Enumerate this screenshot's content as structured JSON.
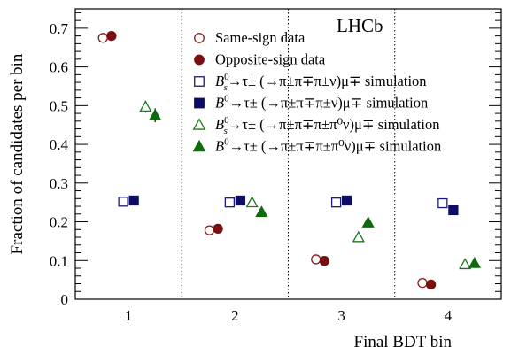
{
  "chart_data": {
    "type": "scatter",
    "title": "",
    "xlabel": "Final BDT bin",
    "ylabel": "Fraction of candidates per bin",
    "watermark": "LHCb",
    "xlim": [
      0.5,
      4.5
    ],
    "ylim": [
      0,
      0.75
    ],
    "categories": [
      "1",
      "2",
      "3",
      "4"
    ],
    "yticks": [
      "0",
      "0.1",
      "0.2",
      "0.3",
      "0.4",
      "0.5",
      "0.6",
      "0.7"
    ],
    "bin_dividers": [
      1.5,
      2.5,
      3.5
    ],
    "legend_position": "top-right",
    "series": [
      {
        "key": "ss",
        "marker": "circle-open",
        "color": "#8b1a1a",
        "legend": {
          "text": "Same-sign data"
        },
        "offset": -0.24,
        "values": [
          0.675,
          0.178,
          0.103,
          0.042
        ],
        "errors": [
          0,
          0,
          0,
          0
        ]
      },
      {
        "key": "os",
        "marker": "circle-filled",
        "color": "#7a0f0f",
        "legend": {
          "text": "Opposite-sign data"
        },
        "offset": -0.16,
        "values": [
          0.68,
          0.182,
          0.099,
          0.038
        ],
        "errors": [
          0,
          0,
          0,
          0
        ]
      },
      {
        "key": "bs3",
        "marker": "square-open",
        "color": "#1a1a7a",
        "legend": {
          "particle": "B",
          "sub": "s",
          "sup": "0",
          "decay": "→τ± (→π±π∓π±ν)μ∓ simulation"
        },
        "offset": -0.05,
        "values": [
          0.252,
          0.25,
          0.25,
          0.248
        ],
        "errors": [
          0,
          0,
          0,
          0
        ]
      },
      {
        "key": "b3",
        "marker": "square-filled",
        "color": "#0d0d66",
        "legend": {
          "particle": "B",
          "sub": "",
          "sup": "0",
          "decay": "→τ± (→π±π∓π±ν)μ∓ simulation"
        },
        "offset": 0.05,
        "values": [
          0.255,
          0.255,
          0.255,
          0.23
        ],
        "errors": [
          0,
          0,
          0,
          0
        ]
      },
      {
        "key": "bs3p0",
        "marker": "triangle-open",
        "color": "#1a7a1a",
        "legend": {
          "particle": "B",
          "sub": "s",
          "sup": "0",
          "decay": "→τ± (→π±π∓π±π⁰ν)μ∓ simulation"
        },
        "offset": 0.16,
        "values": [
          0.497,
          0.25,
          0.16,
          0.09
        ],
        "errors": [
          0.015,
          0.008,
          0.006,
          0.005
        ]
      },
      {
        "key": "b3p0",
        "marker": "triangle-filled",
        "color": "#0f6a0f",
        "legend": {
          "particle": "B",
          "sub": "",
          "sup": "0",
          "decay": "→τ± (→π±π∓π±π⁰ν)μ∓ simulation"
        },
        "offset": 0.25,
        "values": [
          0.475,
          0.225,
          0.198,
          0.093
        ],
        "errors": [
          0.018,
          0.012,
          0.01,
          0.008
        ]
      }
    ]
  }
}
